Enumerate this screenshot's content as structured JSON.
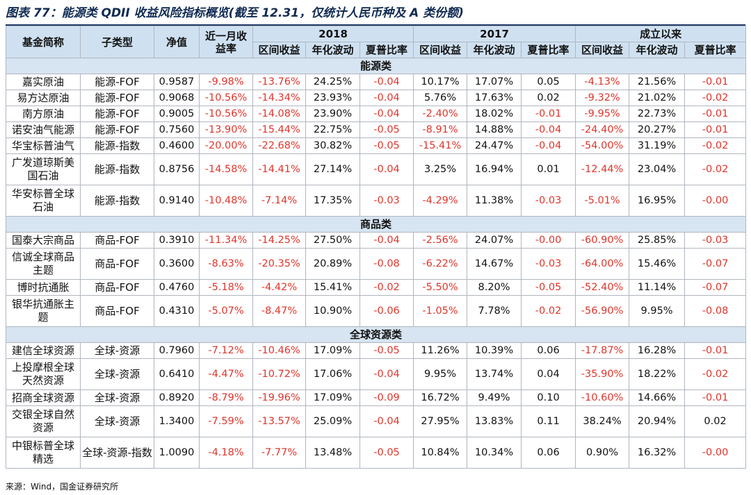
{
  "title": "图表 77：能源类 QDII 收益风险指标概览(截至 12.31，仅统计人民币种及 A 类份额)",
  "header": {
    "fund_name": "基金简称",
    "sub_type": "子类型",
    "nav": "净值",
    "recent_month": "近一月收益率",
    "year_2018": "2018",
    "year_2017": "2017",
    "since_inception": "成立以来",
    "interval_return": "区间收益",
    "annual_vol": "年化波动",
    "sharpe": "夏普比率"
  },
  "categories": [
    {
      "name": "能源类",
      "rows": [
        {
          "name": "嘉实原油",
          "type": "能源-FOF",
          "nav": "0.9587",
          "m1": "-9.98%",
          "r18": "-13.76%",
          "v18": "24.25%",
          "s18": "-0.04",
          "r17": "10.17%",
          "v17": "17.07%",
          "s17": "0.05",
          "ri": "-4.13%",
          "vi": "21.56%",
          "si": "-0.01"
        },
        {
          "name": "易方达原油",
          "type": "能源-FOF",
          "nav": "0.9068",
          "m1": "-10.56%",
          "r18": "-14.34%",
          "v18": "23.93%",
          "s18": "-0.04",
          "r17": "5.76%",
          "v17": "17.63%",
          "s17": "0.02",
          "ri": "-9.32%",
          "vi": "21.02%",
          "si": "-0.02"
        },
        {
          "name": "南方原油",
          "type": "能源-FOF",
          "nav": "0.9005",
          "m1": "-10.56%",
          "r18": "-14.08%",
          "v18": "23.90%",
          "s18": "-0.04",
          "r17": "-2.40%",
          "v17": "18.02%",
          "s17": "-0.01",
          "ri": "-9.95%",
          "vi": "22.73%",
          "si": "-0.01"
        },
        {
          "name": "诺安油气能源",
          "type": "能源-FOF",
          "nav": "0.7560",
          "m1": "-13.90%",
          "r18": "-15.44%",
          "v18": "22.75%",
          "s18": "-0.05",
          "r17": "-8.91%",
          "v17": "14.88%",
          "s17": "-0.04",
          "ri": "-24.40%",
          "vi": "20.27%",
          "si": "-0.01"
        },
        {
          "name": "华宝标普油气",
          "type": "能源-指数",
          "nav": "0.4600",
          "m1": "-20.00%",
          "r18": "-22.68%",
          "v18": "30.82%",
          "s18": "-0.05",
          "r17": "-15.41%",
          "v17": "24.47%",
          "s17": "-0.04",
          "ri": "-54.00%",
          "vi": "31.19%",
          "si": "-0.02"
        },
        {
          "name": "广发道琼斯美国石油",
          "type": "能源-指数",
          "nav": "0.8756",
          "m1": "-14.58%",
          "r18": "-14.41%",
          "v18": "27.14%",
          "s18": "-0.04",
          "r17": "3.25%",
          "v17": "16.94%",
          "s17": "0.01",
          "ri": "-12.44%",
          "vi": "23.04%",
          "si": "-0.02"
        },
        {
          "name": "华安标普全球石油",
          "type": "能源-指数",
          "nav": "0.9140",
          "m1": "-10.48%",
          "r18": "-7.14%",
          "v18": "17.35%",
          "s18": "-0.03",
          "r17": "-4.29%",
          "v17": "11.38%",
          "s17": "-0.03",
          "ri": "-5.01%",
          "vi": "16.95%",
          "si": "-0.00"
        }
      ]
    },
    {
      "name": "商品类",
      "rows": [
        {
          "name": "国泰大宗商品",
          "type": "商品-FOF",
          "nav": "0.3910",
          "m1": "-11.34%",
          "r18": "-14.25%",
          "v18": "27.50%",
          "s18": "-0.04",
          "r17": "-2.56%",
          "v17": "24.07%",
          "s17": "-0.00",
          "ri": "-60.90%",
          "vi": "25.85%",
          "si": "-0.03"
        },
        {
          "name": "信诚全球商品主题",
          "type": "商品-FOF",
          "nav": "0.3600",
          "m1": "-8.63%",
          "r18": "-20.35%",
          "v18": "20.89%",
          "s18": "-0.08",
          "r17": "-6.22%",
          "v17": "14.67%",
          "s17": "-0.03",
          "ri": "-64.00%",
          "vi": "15.46%",
          "si": "-0.07"
        },
        {
          "name": "博时抗通胀",
          "type": "商品-FOF",
          "nav": "0.4760",
          "m1": "-5.18%",
          "r18": "-4.42%",
          "v18": "15.41%",
          "s18": "-0.02",
          "r17": "-5.50%",
          "v17": "8.20%",
          "s17": "-0.05",
          "ri": "-52.40%",
          "vi": "11.14%",
          "si": "-0.07"
        },
        {
          "name": "银华抗通胀主题",
          "type": "商品-FOF",
          "nav": "0.4310",
          "m1": "-5.07%",
          "r18": "-8.47%",
          "v18": "10.90%",
          "s18": "-0.06",
          "r17": "-1.05%",
          "v17": "7.78%",
          "s17": "-0.02",
          "ri": "-56.90%",
          "vi": "9.95%",
          "si": "-0.08"
        }
      ]
    },
    {
      "name": "全球资源类",
      "rows": [
        {
          "name": "建信全球资源",
          "type": "全球-资源",
          "nav": "0.7960",
          "m1": "-7.12%",
          "r18": "-10.46%",
          "v18": "17.09%",
          "s18": "-0.05",
          "r17": "11.26%",
          "v17": "10.39%",
          "s17": "0.06",
          "ri": "-17.87%",
          "vi": "16.28%",
          "si": "-0.01"
        },
        {
          "name": "上投摩根全球天然资源",
          "type": "全球-资源",
          "nav": "0.6410",
          "m1": "-4.47%",
          "r18": "-10.72%",
          "v18": "17.06%",
          "s18": "-0.04",
          "r17": "9.95%",
          "v17": "13.74%",
          "s17": "0.04",
          "ri": "-35.90%",
          "vi": "18.22%",
          "si": "-0.02"
        },
        {
          "name": "招商全球资源",
          "type": "全球-资源",
          "nav": "0.8920",
          "m1": "-8.79%",
          "r18": "-19.96%",
          "v18": "17.09%",
          "s18": "-0.09",
          "r17": "16.72%",
          "v17": "9.49%",
          "s17": "0.10",
          "ri": "-10.60%",
          "vi": "14.66%",
          "si": "-0.01"
        },
        {
          "name": "交银全球自然资源",
          "type": "全球-资源",
          "nav": "1.3400",
          "m1": "-7.59%",
          "r18": "-13.57%",
          "v18": "25.09%",
          "s18": "-0.04",
          "r17": "27.95%",
          "v17": "13.83%",
          "s17": "0.11",
          "ri": "38.24%",
          "vi": "20.94%",
          "si": "0.02"
        },
        {
          "name": "中银标普全球精选",
          "type": "全球-资源-指数",
          "nav": "1.0090",
          "m1": "-4.18%",
          "r18": "-7.77%",
          "v18": "13.48%",
          "s18": "-0.05",
          "r17": "10.84%",
          "v17": "10.34%",
          "s17": "0.06",
          "ri": "0.90%",
          "vi": "16.32%",
          "si": "-0.00"
        }
      ]
    }
  ],
  "source": "来源：Wind，国金证券研究所",
  "colors": {
    "negative": "#e0352b",
    "header_bg": "#cfe1f1",
    "category_bg": "#d7e4f1",
    "title": "#0f2a52"
  }
}
